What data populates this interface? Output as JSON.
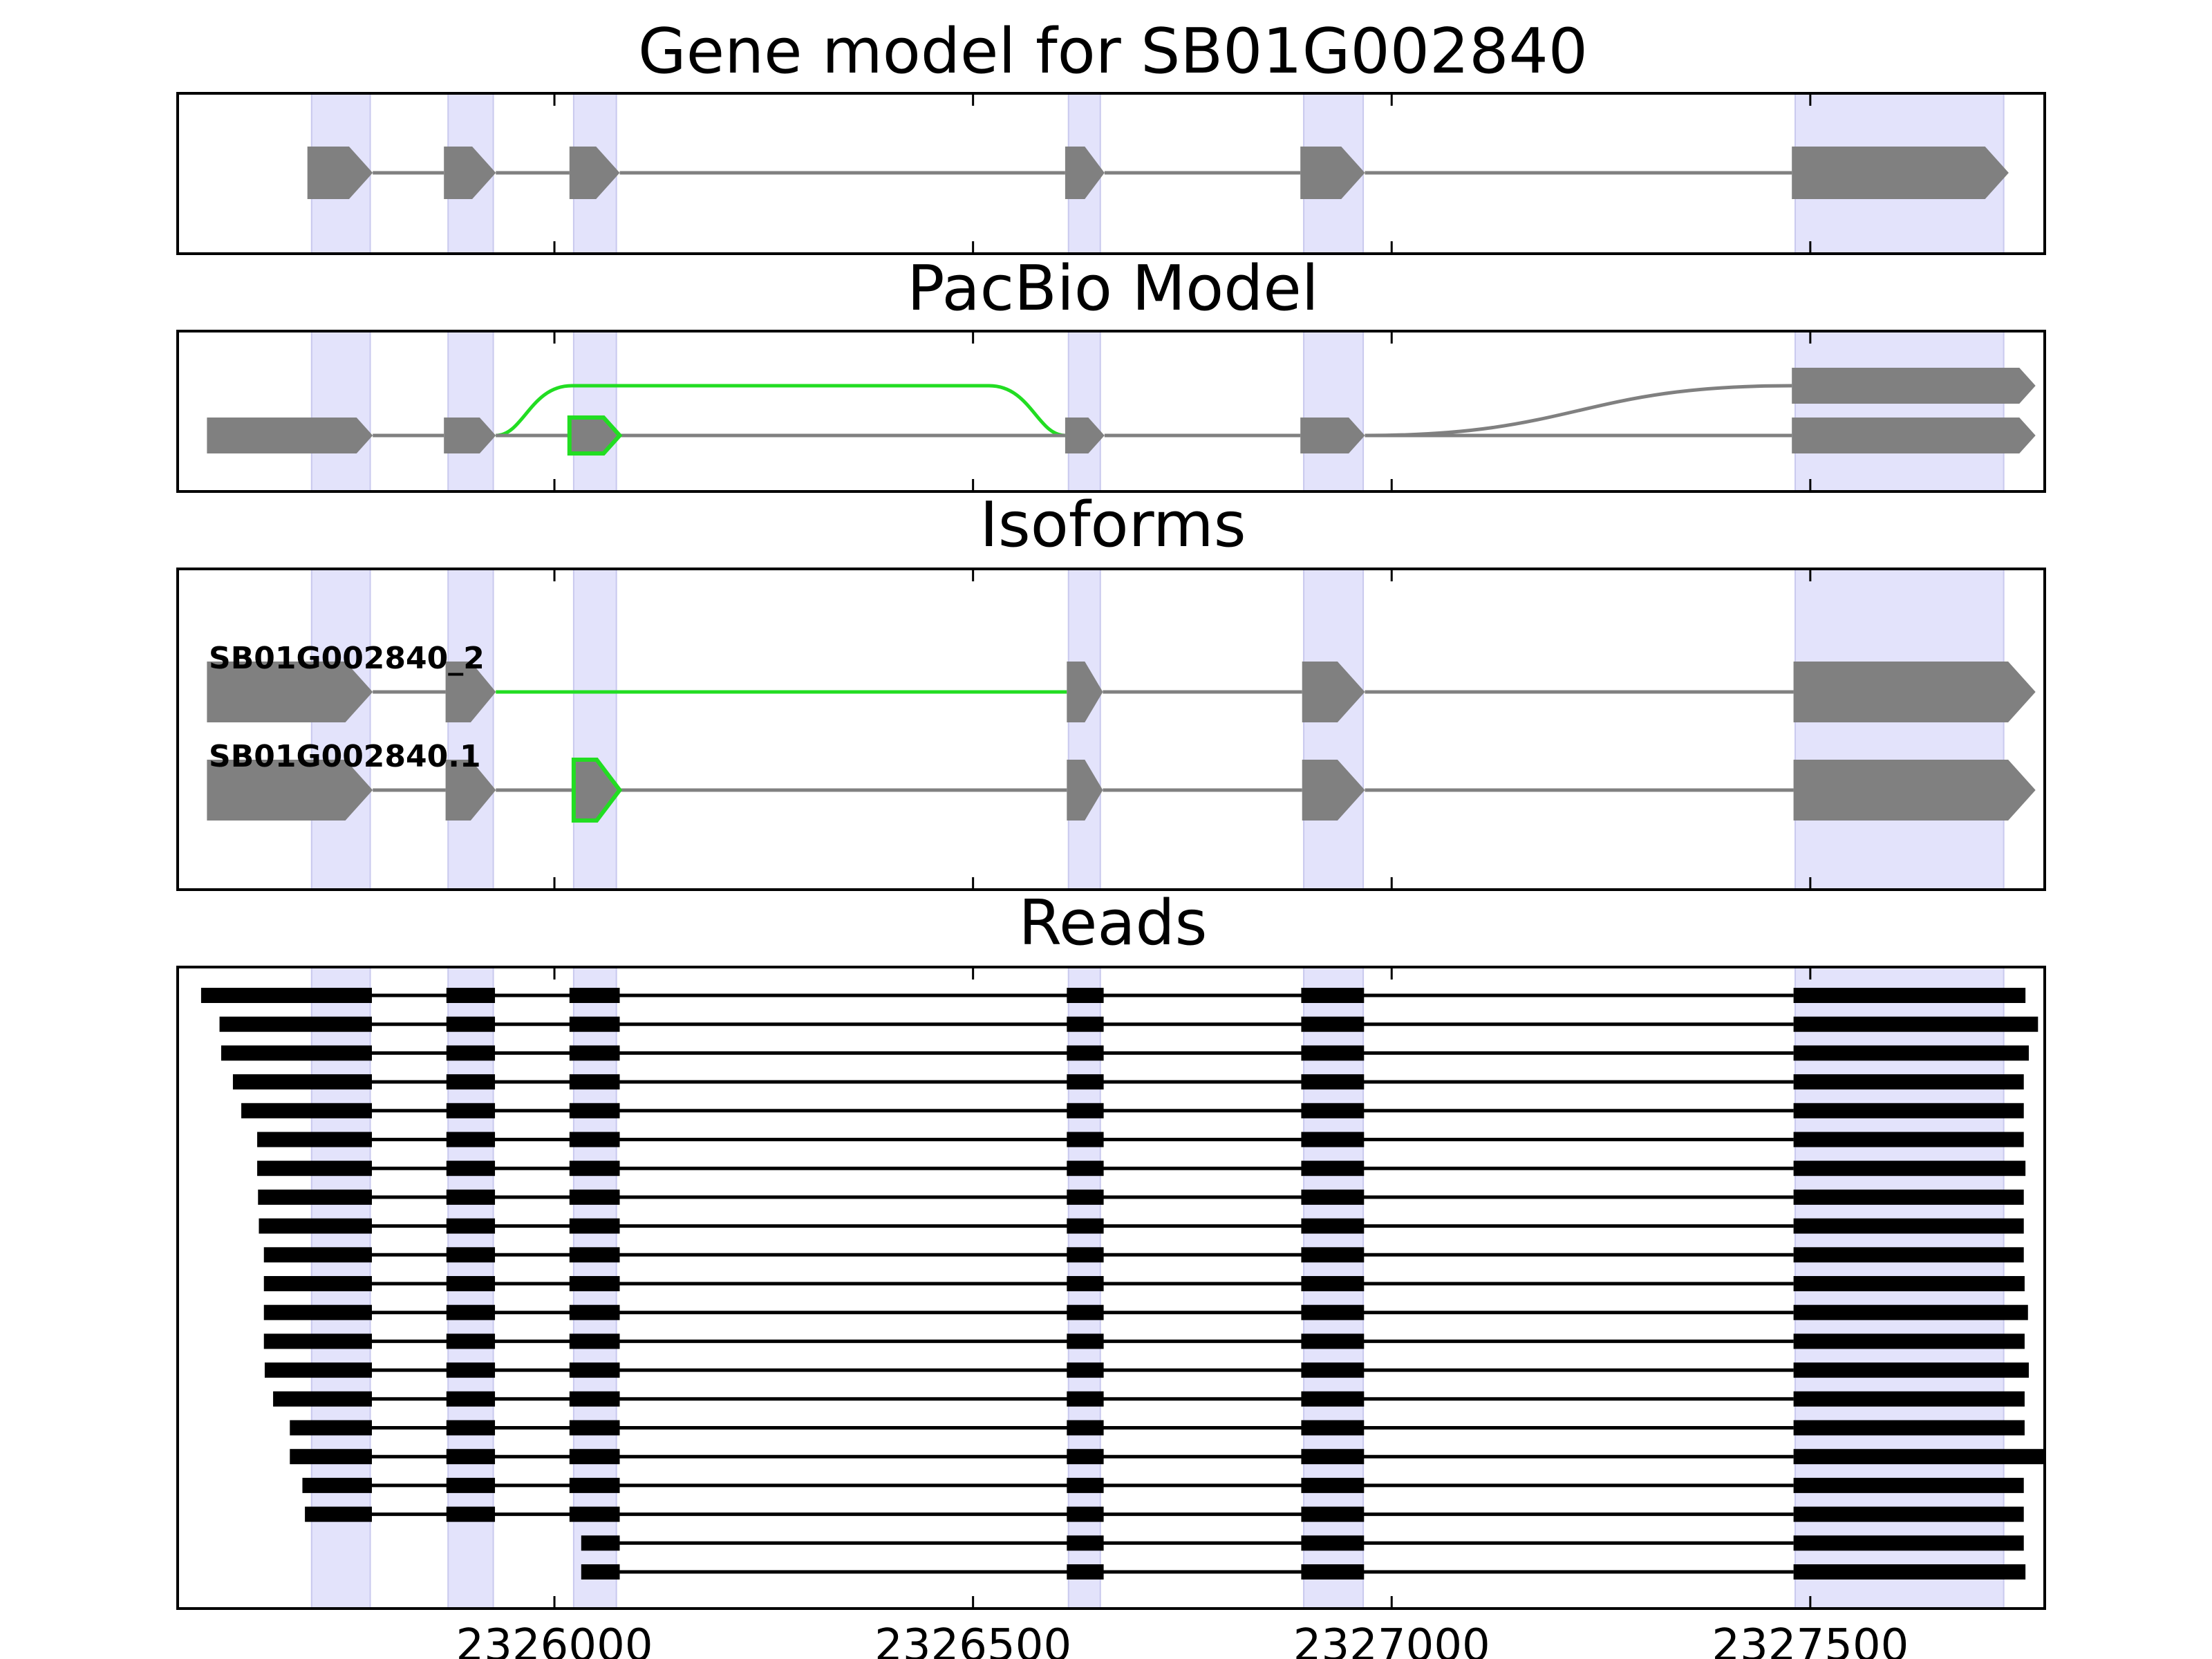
{
  "chart_data": {
    "type": "gene-structure",
    "axis": {
      "xlim": [
        2325550,
        2327780
      ],
      "ticks": [
        2326000,
        2326500,
        2327000,
        2327500
      ],
      "tick_labels": [
        "2326000",
        "2326500",
        "2327000",
        "2327500"
      ]
    },
    "highlight_color": "#e3e3fb",
    "feature_color": "#808080",
    "novel_color": "#22dd22",
    "read_color": "#000000",
    "exon_regions": [
      [
        2325710,
        2325780
      ],
      [
        2325873,
        2325927
      ],
      [
        2326023,
        2326074
      ],
      [
        2326614,
        2326652
      ],
      [
        2326895,
        2326966
      ],
      [
        2327482,
        2327731
      ]
    ],
    "panels": [
      {
        "id": "gene-model",
        "title": "Gene model for SB01G002840",
        "transcripts": [
          {
            "label": "",
            "lane": 0,
            "exons": [
              [
                2325705,
                2325783
              ],
              [
                2325868,
                2325930
              ],
              [
                2326018,
                2326078
              ],
              [
                2326610,
                2326657
              ],
              [
                2326891,
                2326968
              ],
              [
                2327478,
                2327737
              ]
            ],
            "novel_exons": [],
            "novel_introns": []
          }
        ]
      },
      {
        "id": "pacbio-model",
        "title": "PacBio Model",
        "transcripts": [
          {
            "label": "",
            "lane": 0,
            "exons": [
              [
                2325585,
                2325783
              ],
              [
                2325868,
                2325930
              ],
              [
                2326018,
                2326078
              ],
              [
                2326610,
                2326657
              ],
              [
                2326891,
                2326968
              ],
              [
                2327478,
                2327769
              ]
            ],
            "novel_exons": [
              2
            ],
            "novel_introns": [],
            "alt_paths": [
              {
                "from": 2325930,
                "to": 2326610,
                "lane": 1,
                "novel": true
              },
              {
                "from": 2326968,
                "to": 2327478,
                "lane": 1,
                "novel": false
              }
            ],
            "extra_exons": [
              {
                "range": [
                  2327478,
                  2327769
                ],
                "lane": 1
              }
            ]
          }
        ]
      },
      {
        "id": "isoforms",
        "title": "Isoforms",
        "transcripts": [
          {
            "label": "SB01G002840_2",
            "lane": 0,
            "exons": [
              [
                2325585,
                2325783
              ],
              [
                2325870,
                2325930
              ],
              [
                2326612,
                2326655
              ],
              [
                2326893,
                2326968
              ],
              [
                2327480,
                2327769
              ]
            ],
            "novel_exons": [],
            "novel_introns": [
              1
            ]
          },
          {
            "label": "SB01G002840.1",
            "lane": 1,
            "exons": [
              [
                2325585,
                2325783
              ],
              [
                2325870,
                2325930
              ],
              [
                2326023,
                2326078
              ],
              [
                2326612,
                2326655
              ],
              [
                2326893,
                2326968
              ],
              [
                2327480,
                2327769
              ]
            ],
            "novel_exons": [
              2
            ],
            "novel_introns": []
          }
        ]
      },
      {
        "id": "reads",
        "title": "Reads",
        "reads": [
          {
            "start": 2325578,
            "end": 2327757,
            "skip_first_two": false
          },
          {
            "start": 2325600,
            "end": 2327772,
            "skip_first_two": false
          },
          {
            "start": 2325602,
            "end": 2327761,
            "skip_first_two": false
          },
          {
            "start": 2325616,
            "end": 2327755,
            "skip_first_two": false
          },
          {
            "start": 2325626,
            "end": 2327755,
            "skip_first_two": false
          },
          {
            "start": 2325645,
            "end": 2327755,
            "skip_first_two": false
          },
          {
            "start": 2325645,
            "end": 2327757,
            "skip_first_two": false
          },
          {
            "start": 2325646,
            "end": 2327755,
            "skip_first_two": false
          },
          {
            "start": 2325647,
            "end": 2327755,
            "skip_first_two": false
          },
          {
            "start": 2325653,
            "end": 2327755,
            "skip_first_two": false
          },
          {
            "start": 2325653,
            "end": 2327756,
            "skip_first_two": false
          },
          {
            "start": 2325653,
            "end": 2327760,
            "skip_first_two": false
          },
          {
            "start": 2325653,
            "end": 2327756,
            "skip_first_two": false
          },
          {
            "start": 2325654,
            "end": 2327761,
            "skip_first_two": false
          },
          {
            "start": 2325664,
            "end": 2327756,
            "skip_first_two": false
          },
          {
            "start": 2325684,
            "end": 2327756,
            "skip_first_two": false
          },
          {
            "start": 2325684,
            "end": 2327781,
            "skip_first_two": false
          },
          {
            "start": 2325699,
            "end": 2327755,
            "skip_first_two": false
          },
          {
            "start": 2325702,
            "end": 2327755,
            "skip_first_two": false
          },
          {
            "start": 2326032,
            "end": 2327755,
            "skip_first_two": true
          },
          {
            "start": 2326032,
            "end": 2327757,
            "skip_first_two": true
          }
        ],
        "read_exons": [
          [
            2325782,
            2325782
          ],
          [
            2325871,
            2325929
          ],
          [
            2326018,
            2326078
          ],
          [
            2326612,
            2326656
          ],
          [
            2326892,
            2326967
          ],
          [
            2327480,
            2327480
          ]
        ]
      }
    ]
  }
}
